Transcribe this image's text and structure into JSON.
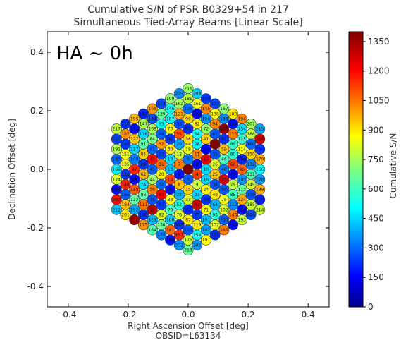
{
  "chart_data": {
    "type": "scatter",
    "title": "Cumulative S/N of PSR B0329+54 in 217",
    "subtitle": "Simultaneous Tied-Array Beams [Linear Scale]",
    "annotation": "HA ~ 0h",
    "xlabel": "Right Ascension Offset [deg]",
    "ylabel": "Declination Offset [deg]",
    "footer": "OBSID=L63134",
    "xlim": [
      -0.47,
      0.47
    ],
    "ylim": [
      -0.47,
      0.47
    ],
    "xticks": [
      "-0.4",
      "-0.2",
      "0.0",
      "0.2",
      "0.4"
    ],
    "yticks": [
      "0.4",
      "0.2",
      "0.0",
      "-0.2",
      "-0.4"
    ],
    "colorbar": {
      "label": "Cumulative S/N",
      "min": 0,
      "max": 1400,
      "ticks": [
        "0",
        "150",
        "300",
        "450",
        "600",
        "750",
        "900",
        "1050",
        "1200",
        "1350"
      ],
      "colormap": "jet"
    },
    "beams": {
      "count": 217,
      "rings": 8,
      "spacing_deg": 0.0345,
      "shape": "hexagonal grid of circular beams, one vertex pointing up",
      "high_sn_region": "two parallel diagonal bands running from upper-left to lower-right across the grid centre",
      "labels": [
        "1",
        "2",
        "3",
        "4",
        "5",
        "6",
        "7",
        "8",
        "9",
        "10",
        "11",
        "12",
        "13",
        "14",
        "15",
        "16",
        "17",
        "18",
        "19",
        "20",
        "21",
        "22",
        "23",
        "24",
        "25",
        "26",
        "27",
        "28",
        "29",
        "30",
        "31",
        "32",
        "33",
        "34",
        "35",
        "36",
        "37",
        "38",
        "39",
        "40",
        "41",
        "42",
        "43",
        "44",
        "45",
        "46",
        "47",
        "48",
        "49",
        "50",
        "51",
        "52",
        "53",
        "54",
        "55",
        "56",
        "57",
        "58",
        "59",
        "60",
        "61",
        "62",
        "63",
        "64",
        "65",
        "66",
        "67",
        "68",
        "69",
        "70",
        "71",
        "72",
        "73",
        "74",
        "75",
        "76",
        "77",
        "78",
        "79",
        "80",
        "81",
        "82",
        "83",
        "84",
        "85",
        "86",
        "87",
        "88",
        "89",
        "90",
        "91",
        "92",
        "93",
        "94",
        "95",
        "96",
        "97",
        "98",
        "99",
        "100",
        "101",
        "102",
        "103",
        "104",
        "105",
        "106",
        "107",
        "108",
        "109",
        "110",
        "111",
        "112",
        "113",
        "114",
        "115",
        "116",
        "117",
        "118",
        "119",
        "120",
        "121",
        "122",
        "123",
        "124",
        "125",
        "126",
        "127",
        "128",
        "129",
        "130",
        "131",
        "132",
        "133",
        "134",
        "135",
        "136",
        "137",
        "138",
        "139",
        "140",
        "141",
        "142",
        "143",
        "144",
        "145",
        "146",
        "147",
        "148",
        "149",
        "150",
        "151",
        "152",
        "153",
        "154",
        "155",
        "156",
        "157",
        "158",
        "159",
        "160",
        "161",
        "162",
        "163",
        "164",
        "165",
        "166",
        "167",
        "168",
        "169",
        "170",
        "171",
        "172",
        "173",
        "174",
        "175",
        "176",
        "177",
        "178",
        "179",
        "180",
        "181",
        "182",
        "183",
        "184",
        "185",
        "186",
        "187",
        "188",
        "189",
        "190",
        "191",
        "192",
        "193",
        "194",
        "195",
        "196",
        "197",
        "198",
        "199",
        "200",
        "201",
        "202",
        "203",
        "204",
        "205",
        "206",
        "207",
        "208",
        "209",
        "210",
        "211",
        "212",
        "213",
        "214",
        "215",
        "216",
        "217"
      ]
    }
  }
}
